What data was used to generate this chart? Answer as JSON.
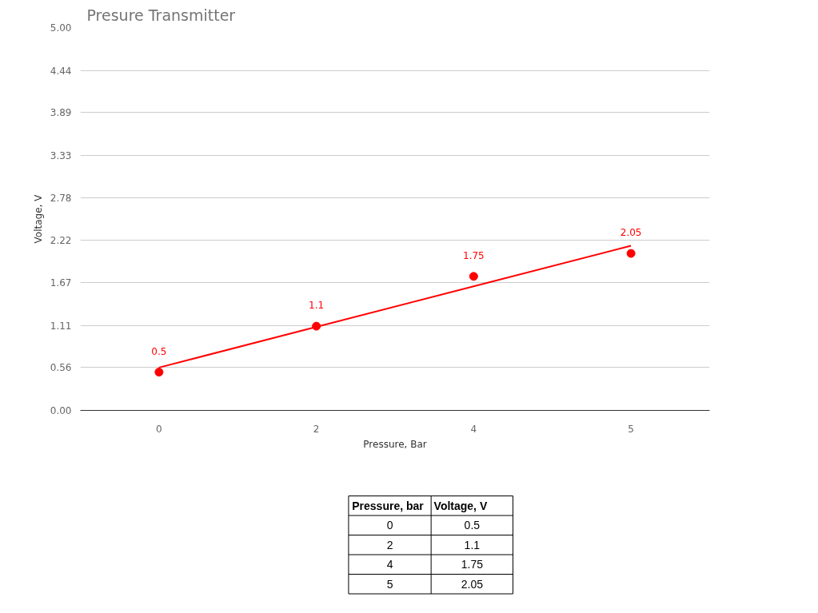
{
  "chart_data": {
    "type": "line",
    "title": "Presure Transmitter",
    "xlabel": "Pressure, Bar",
    "ylabel": "Voltage, V",
    "categories": [
      "0",
      "2",
      "4",
      "5"
    ],
    "series": [
      {
        "type": "scatter",
        "marker": "circle",
        "color": "#ff0000",
        "values": [
          0.5,
          1.1,
          1.75,
          2.05
        ],
        "value_labels": [
          "0.5",
          "1.1",
          "1.75",
          "2.05"
        ]
      },
      {
        "color": "#ff0000",
        "values": [
          0.56,
          1.09,
          1.62,
          2.15
        ]
      }
    ],
    "ylim": [
      0,
      5
    ],
    "yticks": [
      {
        "value": 0,
        "label": "0.00"
      },
      {
        "value": 0.56,
        "label": "0.56"
      },
      {
        "value": 1.11,
        "label": "1.11"
      },
      {
        "value": 1.67,
        "label": "1.67"
      },
      {
        "value": 2.22,
        "label": "2.22"
      },
      {
        "value": 2.78,
        "label": "2.78"
      },
      {
        "value": 3.33,
        "label": "3.33"
      },
      {
        "value": 3.89,
        "label": "3.89"
      },
      {
        "value": 4.44,
        "label": "4.44"
      },
      {
        "value": 5,
        "label": "5.00"
      }
    ],
    "grid": "y",
    "line_style": "solid",
    "annotations": [
      "Pressure, bar",
      "Voltage, V"
    ]
  }
}
